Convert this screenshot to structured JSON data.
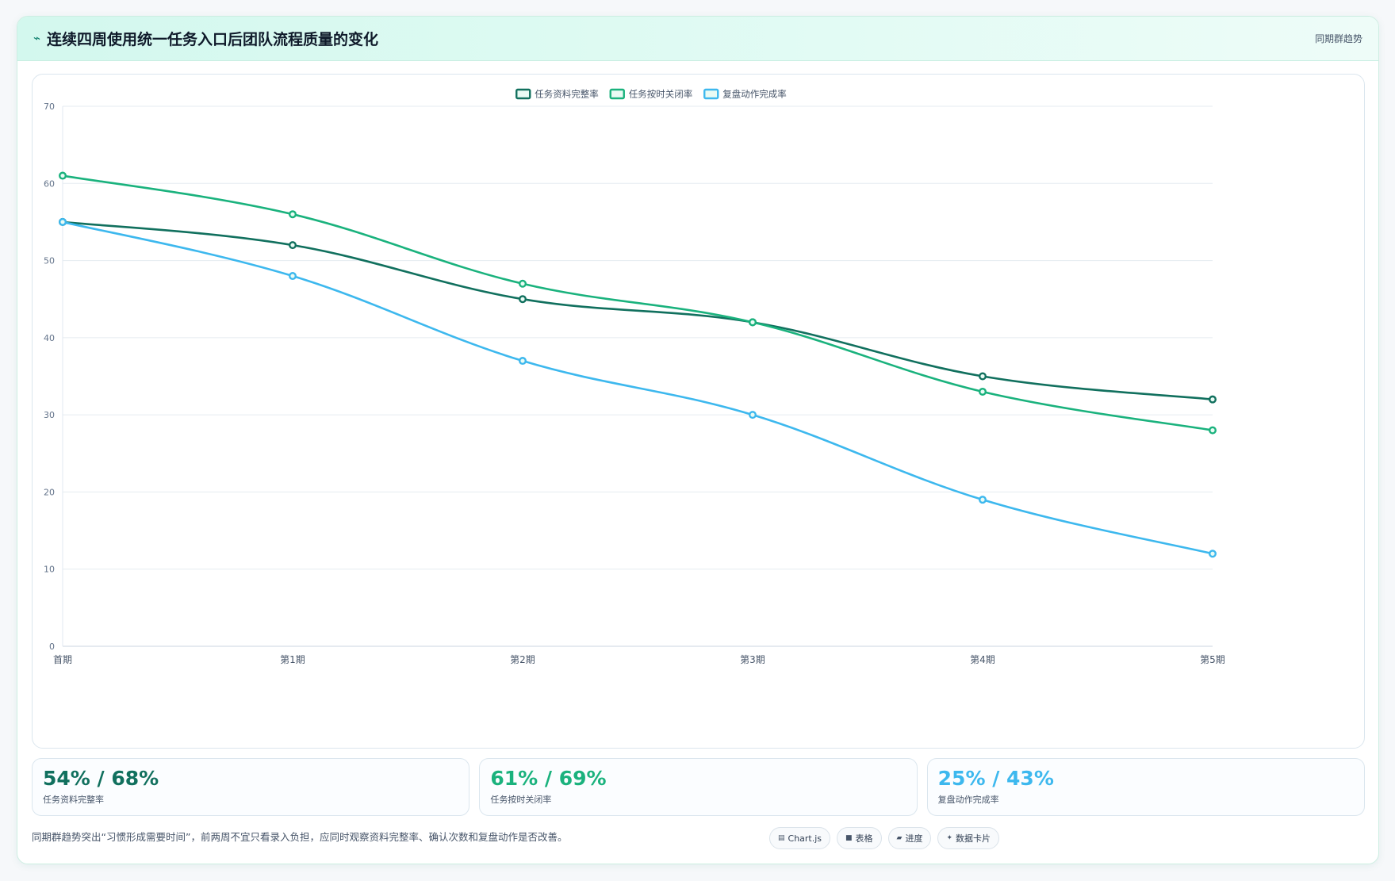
{
  "header": {
    "title": "连续四周使用统一任务入口后团队流程质量的变化",
    "tag": "同期群趋势"
  },
  "chart_data": {
    "type": "line",
    "categories": [
      "首期",
      "第1期",
      "第2期",
      "第3期",
      "第4期",
      "第5期"
    ],
    "series": [
      {
        "name": "任务资料完整率",
        "color": "#11705e",
        "values": [
          55,
          52,
          45,
          42,
          35,
          32
        ]
      },
      {
        "name": "任务按时关闭率",
        "color": "#1ab27d",
        "values": [
          61,
          56,
          47,
          42,
          33,
          28
        ]
      },
      {
        "name": "复盘动作完成率",
        "color": "#3db8ee",
        "values": [
          55,
          48,
          37,
          30,
          19,
          12
        ]
      }
    ],
    "ylim": [
      0,
      70
    ],
    "yticks": [
      0,
      10,
      20,
      30,
      40,
      50,
      60,
      70
    ],
    "grid": true,
    "legend": "top-center"
  },
  "stats": [
    {
      "value": "54% / 68%",
      "label": "任务资料完整率",
      "color": "#11705e"
    },
    {
      "value": "61% / 69%",
      "label": "任务按时关闭率",
      "color": "#1ab27d"
    },
    {
      "value": "25% / 43%",
      "label": "复盘动作完成率",
      "color": "#3db8ee"
    }
  ],
  "footer": {
    "note": "同期群趋势突出“习惯形成需要时间”，前两周不宜只看录入负担，应同时观察资料完整率、确认次数和复盘动作是否改善。",
    "chips": [
      {
        "icon": "chart-icon",
        "glyph": "▤",
        "label": "Chart.js"
      },
      {
        "icon": "table-icon",
        "glyph": "■",
        "label": "表格"
      },
      {
        "icon": "progress-icon",
        "glyph": "▰",
        "label": "进度"
      },
      {
        "icon": "card-icon",
        "glyph": "✦",
        "label": "数据卡片"
      }
    ]
  }
}
